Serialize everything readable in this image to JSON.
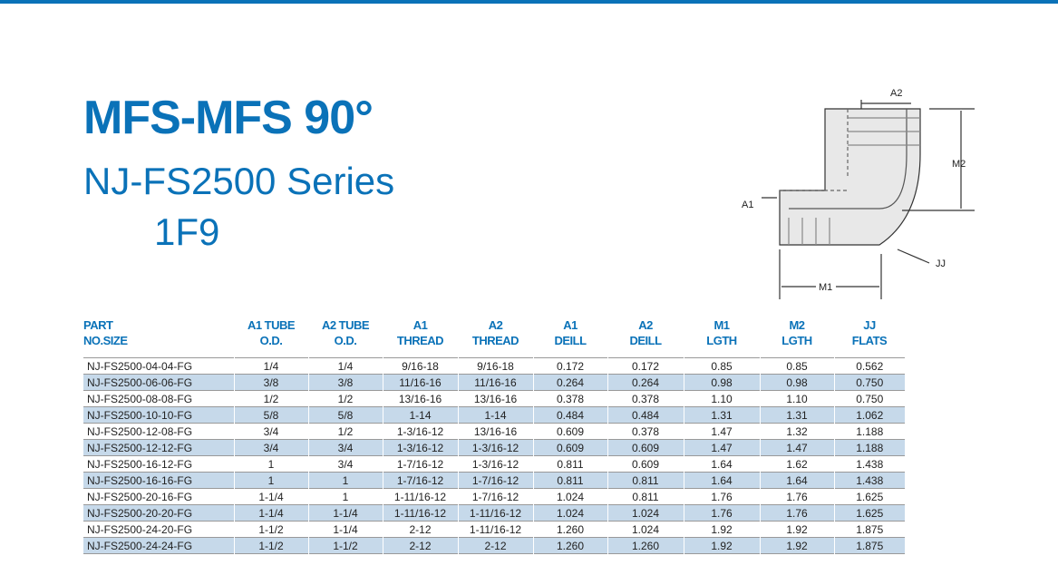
{
  "header": {
    "title": "MFS-MFS 90°",
    "subtitle": "NJ-FS2500 Series",
    "code": "1F9"
  },
  "diagram": {
    "labels": {
      "a2": "A2",
      "m2": "M2",
      "a1": "A1",
      "jj": "JJ",
      "m1": "M1"
    }
  },
  "table": {
    "headers": [
      [
        "PART",
        "NO.SIZE"
      ],
      [
        "A1 TUBE",
        "O.D."
      ],
      [
        "A2 TUBE",
        "O.D."
      ],
      [
        "A1",
        "THREAD"
      ],
      [
        "A2",
        "THREAD"
      ],
      [
        "A1",
        "DEILL"
      ],
      [
        "A2",
        "DEILL"
      ],
      [
        "M1",
        "LGTH"
      ],
      [
        "M2",
        "LGTH"
      ],
      [
        "JJ",
        "FLATS"
      ]
    ],
    "rows": [
      [
        "NJ-FS2500-04-04-FG",
        "1/4",
        "1/4",
        "9/16-18",
        "9/16-18",
        "0.172",
        "0.172",
        "0.85",
        "0.85",
        "0.562"
      ],
      [
        "NJ-FS2500-06-06-FG",
        "3/8",
        "3/8",
        "11/16-16",
        "11/16-16",
        "0.264",
        "0.264",
        "0.98",
        "0.98",
        "0.750"
      ],
      [
        "NJ-FS2500-08-08-FG",
        "1/2",
        "1/2",
        "13/16-16",
        "13/16-16",
        "0.378",
        "0.378",
        "1.10",
        "1.10",
        "0.750"
      ],
      [
        "NJ-FS2500-10-10-FG",
        "5/8",
        "5/8",
        "1-14",
        "1-14",
        "0.484",
        "0.484",
        "1.31",
        "1.31",
        "1.062"
      ],
      [
        "NJ-FS2500-12-08-FG",
        "3/4",
        "1/2",
        "1-3/16-12",
        "13/16-16",
        "0.609",
        "0.378",
        "1.47",
        "1.32",
        "1.188"
      ],
      [
        "NJ-FS2500-12-12-FG",
        "3/4",
        "3/4",
        "1-3/16-12",
        "1-3/16-12",
        "0.609",
        "0.609",
        "1.47",
        "1.47",
        "1.188"
      ],
      [
        "NJ-FS2500-16-12-FG",
        "1",
        "3/4",
        "1-7/16-12",
        "1-3/16-12",
        "0.811",
        "0.609",
        "1.64",
        "1.62",
        "1.438"
      ],
      [
        "NJ-FS2500-16-16-FG",
        "1",
        "1",
        "1-7/16-12",
        "1-7/16-12",
        "0.811",
        "0.811",
        "1.64",
        "1.64",
        "1.438"
      ],
      [
        "NJ-FS2500-20-16-FG",
        "1-1/4",
        "1",
        "1-11/16-12",
        "1-7/16-12",
        "1.024",
        "0.811",
        "1.76",
        "1.76",
        "1.625"
      ],
      [
        "NJ-FS2500-20-20-FG",
        "1-1/4",
        "1-1/4",
        "1-11/16-12",
        "1-11/16-12",
        "1.024",
        "1.024",
        "1.76",
        "1.76",
        "1.625"
      ],
      [
        "NJ-FS2500-24-20-FG",
        "1-1/2",
        "1-1/4",
        "2-12",
        "1-11/16-12",
        "1.260",
        "1.024",
        "1.92",
        "1.92",
        "1.875"
      ],
      [
        "NJ-FS2500-24-24-FG",
        "1-1/2",
        "1-1/2",
        "2-12",
        "2-12",
        "1.260",
        "1.260",
        "1.92",
        "1.92",
        "1.875"
      ]
    ]
  }
}
